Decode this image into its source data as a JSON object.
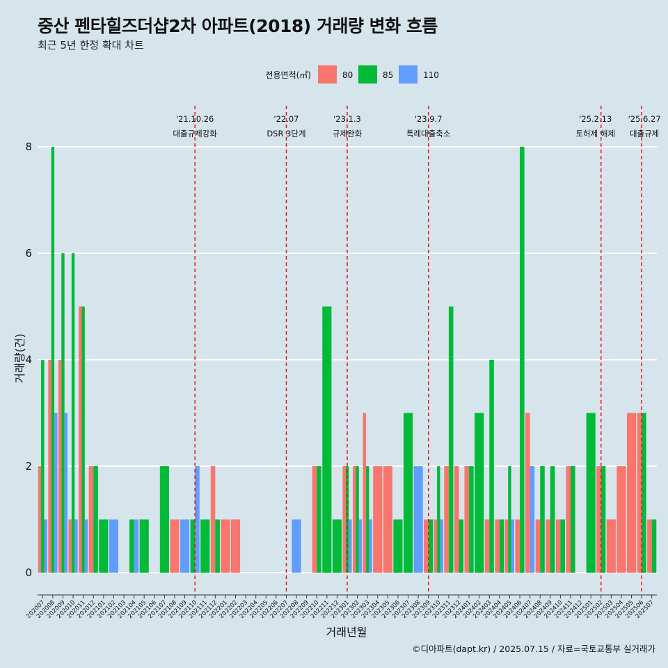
{
  "title": "중산 펜타힐즈더샵2차 아파트(2018) 거래량 변화 흐름",
  "subtitle": "최근 5년 한정 확대 차트",
  "caption": "©디아파트(dapt.kr) / 2025.07.15 / 자료=국토교통부 실거래가",
  "colors": {
    "80": "#f8766d",
    "85": "#00ba38",
    "110": "#619cff",
    "event_line": "#e8141a",
    "background": "#d6e4ec",
    "grid": "#ffffff"
  },
  "chart_data": {
    "type": "bar",
    "xlabel": "거래년월",
    "ylabel": "거래량(건)",
    "ylim": [
      0,
      8
    ],
    "yticks": [
      0,
      2,
      4,
      6,
      8
    ],
    "legend": {
      "title": "전용면적(㎡)",
      "position": "top"
    },
    "categories": [
      "202007",
      "202008",
      "202009",
      "202010",
      "202011",
      "202012",
      "202101",
      "202102",
      "202103",
      "202104",
      "202105",
      "202106",
      "202107",
      "202108",
      "202109",
      "202110",
      "202111",
      "202112",
      "202201",
      "202202",
      "202203",
      "202204",
      "202205",
      "202206",
      "202207",
      "202208",
      "202209",
      "202210",
      "202211",
      "202212",
      "202301",
      "202302",
      "202303",
      "202304",
      "202305",
      "202306",
      "202307",
      "202308",
      "202309",
      "202310",
      "202311",
      "202312",
      "202401",
      "202402",
      "202403",
      "202404",
      "202405",
      "202406",
      "202407",
      "202408",
      "202409",
      "202410",
      "202411",
      "202412",
      "202501",
      "202502",
      "202503",
      "202504",
      "202505",
      "202506",
      "202507"
    ],
    "series": [
      {
        "name": "80",
        "values": [
          2,
          4,
          4,
          1,
          5,
          2,
          0,
          0,
          0,
          0,
          0,
          0,
          0,
          1,
          0,
          0,
          0,
          2,
          1,
          1,
          0,
          0,
          0,
          0,
          0,
          0,
          0,
          2,
          0,
          0,
          2,
          2,
          3,
          2,
          2,
          0,
          0,
          0,
          1,
          1,
          2,
          2,
          2,
          0,
          1,
          1,
          1,
          1,
          3,
          1,
          1,
          1,
          2,
          0,
          0,
          2,
          1,
          2,
          3,
          3,
          1
        ]
      },
      {
        "name": "85",
        "values": [
          4,
          8,
          6,
          6,
          5,
          2,
          1,
          0,
          0,
          1,
          1,
          0,
          2,
          0,
          0,
          1,
          1,
          1,
          0,
          0,
          0,
          0,
          0,
          0,
          0,
          0,
          0,
          2,
          5,
          1,
          2,
          2,
          2,
          0,
          0,
          1,
          3,
          0,
          1,
          2,
          5,
          1,
          2,
          3,
          4,
          1,
          2,
          8,
          0,
          2,
          2,
          1,
          2,
          0,
          3,
          2,
          0,
          0,
          0,
          3,
          1
        ]
      },
      {
        "name": "110",
        "values": [
          1,
          3,
          3,
          1,
          1,
          0,
          0,
          1,
          0,
          1,
          0,
          0,
          0,
          0,
          1,
          2,
          0,
          0,
          0,
          0,
          0,
          0,
          0,
          0,
          0,
          1,
          0,
          0,
          0,
          0,
          1,
          1,
          1,
          0,
          0,
          0,
          0,
          2,
          0,
          1,
          0,
          0,
          0,
          0,
          0,
          0,
          1,
          0,
          2,
          0,
          0,
          0,
          0,
          0,
          0,
          0,
          0,
          0,
          0,
          0,
          0
        ]
      }
    ],
    "events": [
      {
        "x": "202110",
        "date": "'21.10.26",
        "label": "대출규제강화"
      },
      {
        "x": "202207",
        "date": "'22.07",
        "label": "DSR 3단계"
      },
      {
        "x": "202301",
        "date": "'23.1.3",
        "label": "규제완화"
      },
      {
        "x": "202309",
        "date": "'23.9.7",
        "label": "특례대출축소"
      },
      {
        "x": "202502",
        "date": "'25.2.13",
        "label": "토허제 해제"
      },
      {
        "x": "202506",
        "date": "'25.6.27",
        "label": "대출규제"
      }
    ]
  }
}
